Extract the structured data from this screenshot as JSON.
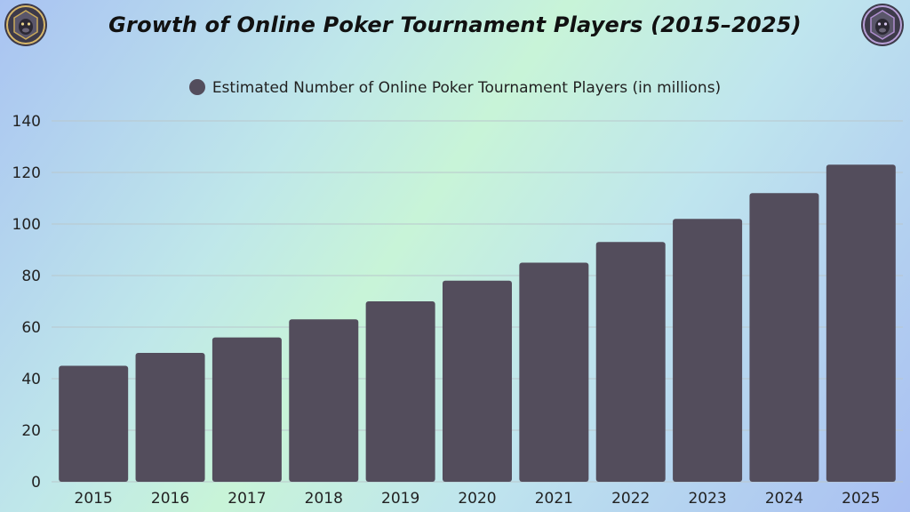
{
  "colors": {
    "bar": "#534d5c",
    "grid": "#b9c7cc",
    "text": "#222222"
  },
  "logos": {
    "left": "gorilla-badge-icon",
    "right": "gorilla-badge-icon"
  },
  "chart_data": {
    "type": "bar",
    "title": "Growth of Online Poker Tournament Players (2015–2025)",
    "legend": "Estimated Number of Online Poker Tournament Players (in millions)",
    "legend_position": "top-center",
    "categories": [
      "2015",
      "2016",
      "2017",
      "2018",
      "2019",
      "2020",
      "2021",
      "2022",
      "2023",
      "2024",
      "2025"
    ],
    "series": [
      {
        "name": "Estimated Number of Online Poker Tournament Players (in millions)",
        "values": [
          45,
          50,
          56,
          63,
          70,
          78,
          85,
          93,
          102,
          112,
          123
        ]
      }
    ],
    "xlabel": "",
    "ylabel": "",
    "ylim": [
      0,
      140
    ],
    "yticks": [
      0,
      20,
      40,
      60,
      80,
      100,
      120,
      140
    ],
    "grid": true
  }
}
